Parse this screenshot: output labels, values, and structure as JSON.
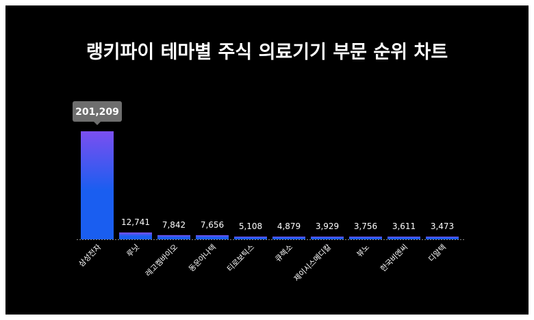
{
  "chart_data": {
    "type": "bar",
    "title": "랭키파이 테마별 주식 의료기기 부문 순위 차트",
    "categories": [
      "삼성전자",
      "루닛",
      "레고켐바이오",
      "동운아나텍",
      "티로보틱스",
      "큐렉소",
      "제이시스메디칼",
      "뷰노",
      "한국비엔씨",
      "디알텍"
    ],
    "values": [
      201209,
      12741,
      7842,
      7656,
      5108,
      4879,
      3929,
      3756,
      3611,
      3473
    ],
    "value_labels": [
      "201,209",
      "12,741",
      "7,842",
      "7,656",
      "5,108",
      "4,879",
      "3,929",
      "3,756",
      "3,611",
      "3,473"
    ],
    "highlight_label": "201,209",
    "xlabel": "",
    "ylabel": "",
    "ylim": [
      0,
      201209
    ],
    "grid": false,
    "colors": {
      "bar_top": "#7b4ff0",
      "bar_bottom": "#1a5ef0",
      "tooltip": "#6e6e6e",
      "background": "#000000",
      "text": "#ffffff"
    }
  }
}
